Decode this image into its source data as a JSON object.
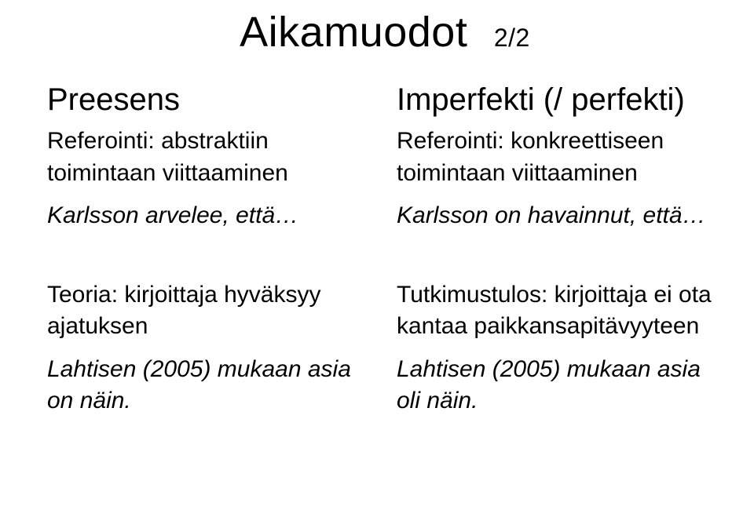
{
  "title": "Aikamuodot",
  "page_fraction": "2/2",
  "layout": {
    "columns": 2,
    "rows": 2,
    "background_color": "#ffffff",
    "text_color": "#000000",
    "title_fontsize_pt": 40,
    "heading_fontsize_pt": 30,
    "body_fontsize_pt": 22,
    "font_family": "Arial"
  },
  "left": {
    "top": {
      "heading": "Preesens",
      "sub": "Referointi: abstraktiin toimintaan viittaaminen",
      "example": "Karlsson arvelee, että…"
    },
    "bottom": {
      "sub": "Teoria: kirjoittaja hyväksyy ajatuksen",
      "example": "Lahtisen (2005) mukaan asia on näin."
    }
  },
  "right": {
    "top": {
      "heading": "Imperfekti (/ perfekti)",
      "sub": "Referointi: konkreettiseen toimintaan viittaaminen",
      "example": "Karlsson on havainnut, että…"
    },
    "bottom": {
      "sub": "Tutkimustulos: kirjoittaja ei ota kantaa paikkansapitävyyteen",
      "example": "Lahtisen (2005) mukaan asia oli näin."
    }
  }
}
